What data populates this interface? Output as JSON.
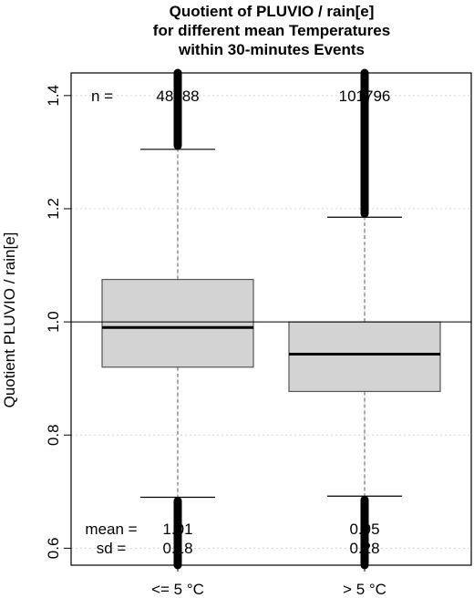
{
  "chart_data": {
    "type": "boxplot",
    "title": [
      "Quotient of PLUVIO / rain[e]",
      "for different mean Temperatures",
      "within 30-minutes Events"
    ],
    "ylabel": "Quotient PLUVIO / rain[e]",
    "ylim": [
      0.57,
      1.44
    ],
    "yticks": [
      0.6,
      0.8,
      1.0,
      1.2,
      1.4
    ],
    "ytick_labels": [
      "0.6",
      "0.8",
      "1.0",
      "1.2",
      "1.4"
    ],
    "categories": [
      "<= 5 °C",
      "> 5 °C"
    ],
    "reference_line": 1.0,
    "grid": true,
    "boxes": [
      {
        "whisker_low": 0.69,
        "q1": 0.92,
        "median": 0.99,
        "q3": 1.075,
        "whisker_high": 1.305
      },
      {
        "whisker_low": 0.692,
        "q1": 0.877,
        "median": 0.943,
        "q3": 1.0,
        "whisker_high": 1.185
      }
    ],
    "annotations": {
      "n_label": "n =",
      "n_values": [
        "48688",
        "101796"
      ],
      "mean_label": "mean =",
      "mean_values": [
        "1.01",
        "0.95"
      ],
      "sd_label": "sd =",
      "sd_values": [
        "0.18",
        "0.28"
      ]
    }
  }
}
